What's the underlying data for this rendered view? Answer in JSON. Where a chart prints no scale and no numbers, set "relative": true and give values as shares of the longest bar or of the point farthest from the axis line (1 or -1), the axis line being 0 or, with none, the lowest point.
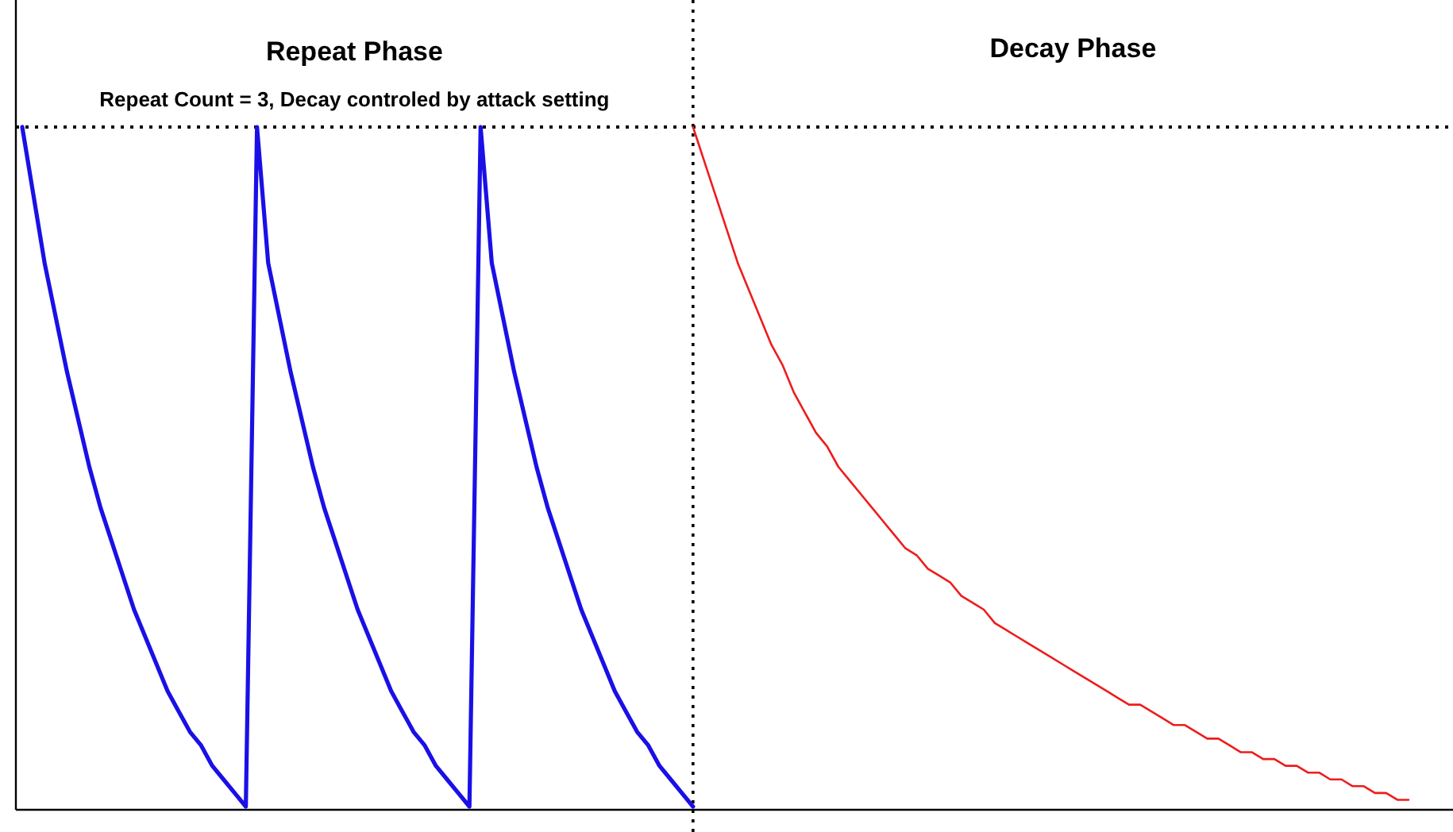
{
  "chart_data": {
    "type": "line",
    "relative": true,
    "categories": [
      null,
      null,
      null,
      null,
      null,
      null,
      null,
      null,
      null,
      null,
      null,
      null,
      null,
      null,
      null,
      null,
      null,
      null,
      null,
      null,
      null,
      null,
      null,
      null,
      null,
      null,
      null,
      null,
      null,
      null,
      null,
      null,
      null,
      null,
      null,
      null,
      null,
      null,
      null,
      null,
      null,
      null,
      null,
      null,
      null,
      null,
      null,
      null,
      null,
      null,
      null,
      null,
      null,
      null,
      null,
      null,
      null,
      null,
      null,
      null,
      null,
      null,
      null,
      null,
      null,
      null,
      null,
      null,
      null,
      null,
      null,
      null,
      null,
      null,
      null,
      null,
      null,
      null,
      null,
      null,
      null,
      null,
      null,
      null,
      null,
      null,
      null,
      null,
      null,
      null,
      null,
      null,
      null,
      null,
      null,
      null,
      null,
      null,
      null,
      null,
      null,
      null,
      null,
      null,
      null,
      null,
      null,
      null,
      null,
      null,
      null,
      null,
      null,
      null,
      null,
      null,
      null,
      null,
      null,
      null,
      null,
      null,
      null,
      null,
      null
    ],
    "series": [
      {
        "color": "#1a10e6",
        "values": [
          1,
          0.9,
          0.8,
          0.72,
          0.64,
          0.57,
          0.5,
          0.44,
          0.39,
          0.34,
          0.29,
          0.25,
          0.21,
          0.17,
          0.14,
          0.11,
          0.09,
          0.06,
          0.04,
          0.02,
          0,
          1,
          0.8,
          0.72,
          0.64,
          0.57,
          0.5,
          0.44,
          0.39,
          0.34,
          0.29,
          0.25,
          0.21,
          0.17,
          0.14,
          0.11,
          0.09,
          0.06,
          0.04,
          0.02,
          0,
          1,
          0.8,
          0.72,
          0.64,
          0.57,
          0.5,
          0.44,
          0.39,
          0.34,
          0.29,
          0.25,
          0.21,
          0.17,
          0.14,
          0.11,
          0.09,
          0.06,
          0.04,
          0.02,
          0,
          null,
          null,
          null,
          null,
          null,
          null,
          null,
          null,
          null,
          null,
          null,
          null,
          null,
          null,
          null,
          null,
          null,
          null,
          null,
          null,
          null,
          null,
          null,
          null,
          null,
          null,
          null,
          null,
          null,
          null,
          null,
          null,
          null,
          null,
          null,
          null,
          null,
          null,
          null,
          null,
          null,
          null,
          null,
          null,
          null,
          null,
          null,
          null,
          null,
          null,
          null,
          null,
          null,
          null,
          null,
          null,
          null,
          null,
          null,
          null,
          null,
          null,
          null,
          null
        ]
      },
      {
        "color": "#ee1c1c",
        "values": [
          null,
          null,
          null,
          null,
          null,
          null,
          null,
          null,
          null,
          null,
          null,
          null,
          null,
          null,
          null,
          null,
          null,
          null,
          null,
          null,
          null,
          null,
          null,
          null,
          null,
          null,
          null,
          null,
          null,
          null,
          null,
          null,
          null,
          null,
          null,
          null,
          null,
          null,
          null,
          null,
          null,
          null,
          null,
          null,
          null,
          null,
          null,
          null,
          null,
          null,
          null,
          null,
          null,
          null,
          null,
          null,
          null,
          null,
          null,
          null,
          1,
          0.95,
          0.9,
          0.85,
          0.8,
          0.76,
          0.72,
          0.68,
          0.65,
          0.61,
          0.58,
          0.55,
          0.53,
          0.5,
          0.48,
          0.46,
          0.44,
          0.42,
          0.4,
          0.38,
          0.37,
          0.35,
          0.34,
          0.33,
          0.31,
          0.3,
          0.29,
          0.27,
          0.26,
          0.25,
          0.24,
          0.23,
          0.22,
          0.21,
          0.2,
          0.19,
          0.18,
          0.17,
          0.16,
          0.15,
          0.15,
          0.14,
          0.13,
          0.12,
          0.12,
          0.11,
          0.1,
          0.1,
          0.09,
          0.08,
          0.08,
          0.07,
          0.07,
          0.06,
          0.06,
          0.05,
          0.05,
          0.04,
          0.04,
          0.03,
          0.03,
          0.02,
          0.02,
          0.01,
          0.01
        ]
      }
    ],
    "ref_lines": [
      {
        "axis": "y",
        "value": 1,
        "line_style": "dotted"
      }
    ],
    "annotations": [
      "Repeat Phase",
      "Repeat Count = 3, Decay controled by attack setting",
      "Decay Phase"
    ]
  }
}
